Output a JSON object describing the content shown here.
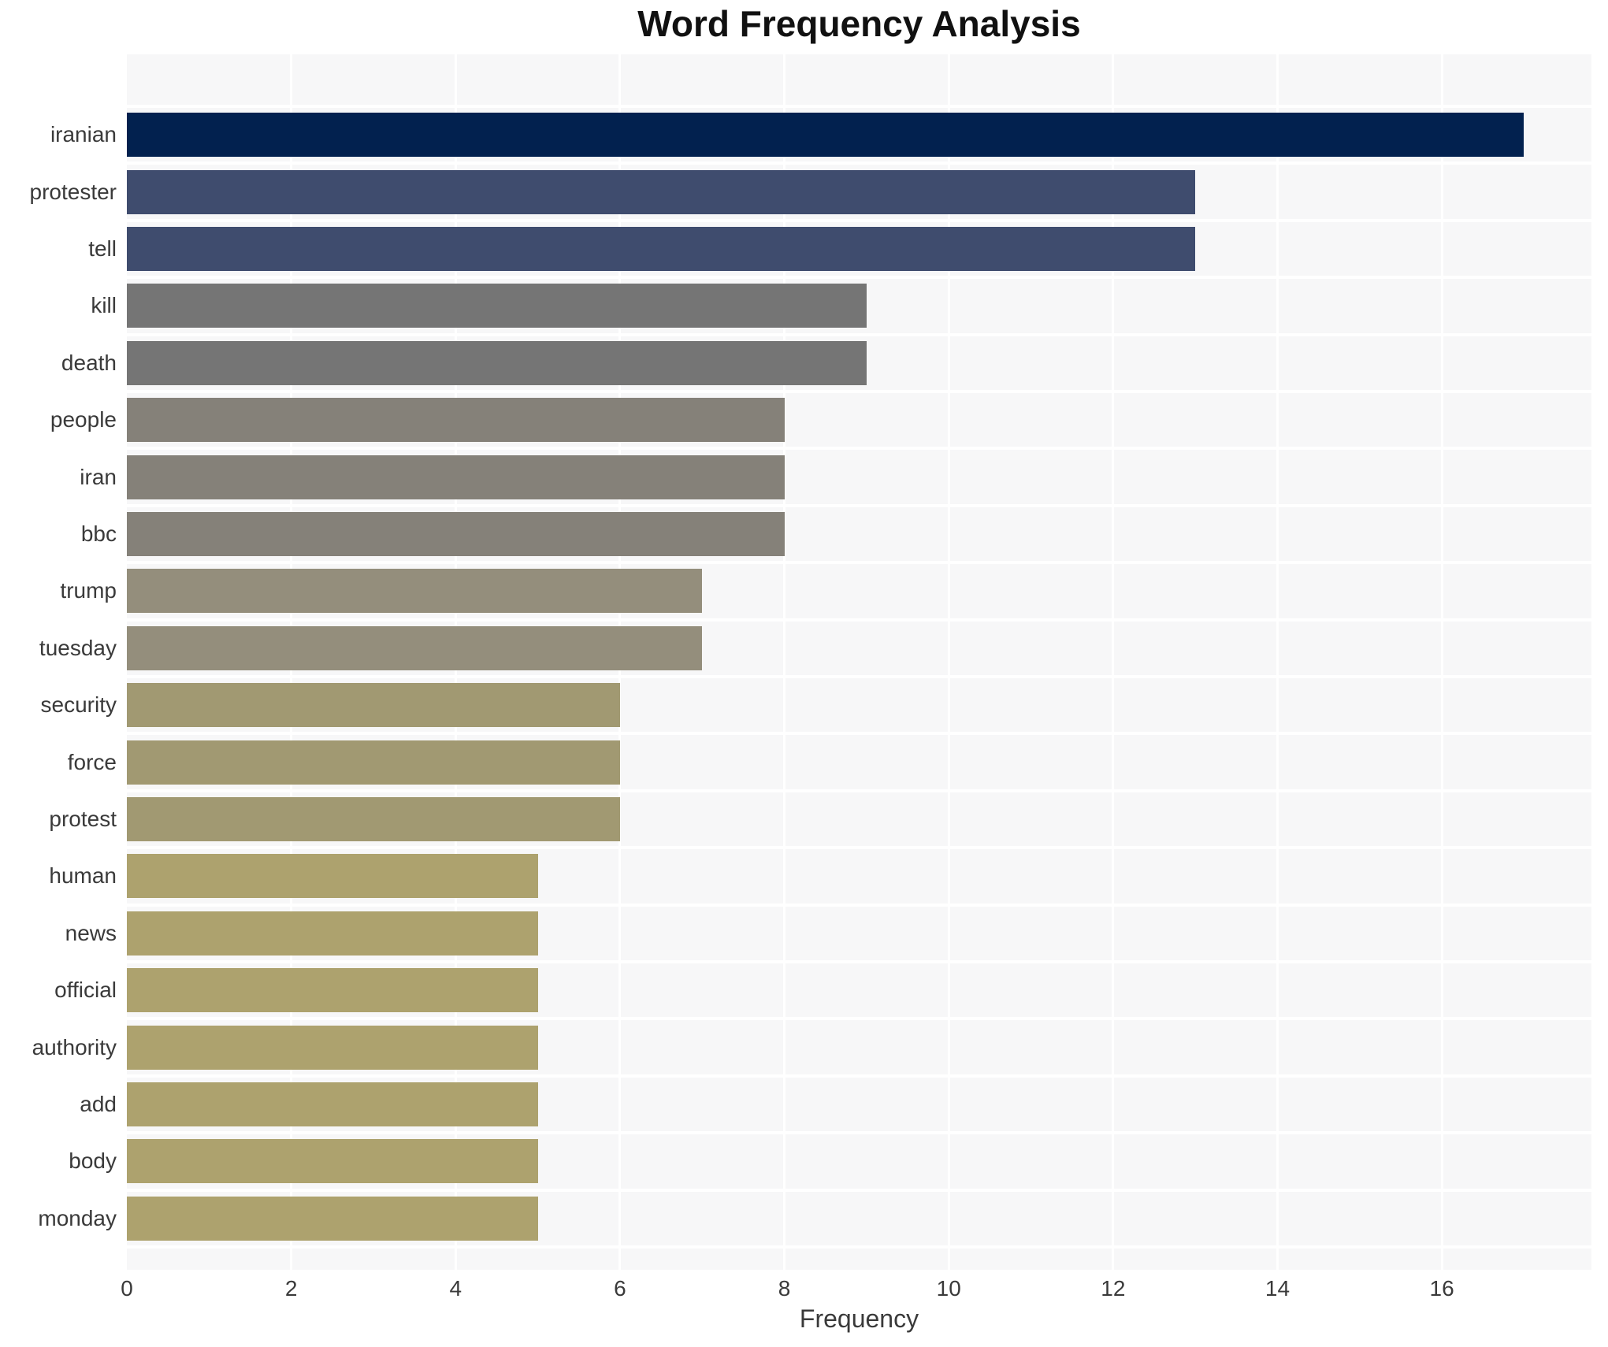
{
  "chart_data": {
    "type": "bar",
    "orientation": "horizontal",
    "title": "Word Frequency Analysis",
    "xlabel": "Frequency",
    "ylabel": "",
    "categories": [
      "iranian",
      "protester",
      "tell",
      "kill",
      "death",
      "people",
      "iran",
      "bbc",
      "trump",
      "tuesday",
      "security",
      "force",
      "protest",
      "human",
      "news",
      "official",
      "authority",
      "add",
      "body",
      "monday"
    ],
    "values": [
      17,
      13,
      13,
      9,
      9,
      8,
      8,
      8,
      7,
      7,
      6,
      6,
      6,
      5,
      5,
      5,
      5,
      5,
      5,
      5
    ],
    "bar_colors": [
      "#02214f",
      "#3f4c6e",
      "#3f4c6e",
      "#757575",
      "#757575",
      "#858179",
      "#858179",
      "#858179",
      "#948e7c",
      "#948e7c",
      "#a19972",
      "#a19972",
      "#a19972",
      "#ada26e",
      "#ada26e",
      "#ada26e",
      "#ada26e",
      "#ada26e",
      "#ada26e",
      "#ada26e"
    ],
    "xticks": [
      0,
      2,
      4,
      6,
      8,
      10,
      12,
      14,
      16
    ],
    "xlim": [
      0,
      17.82
    ],
    "grid": true,
    "legend": "none",
    "plot_background": "#f7f7f8",
    "grid_color": "#ffffff",
    "colormap": "cividis"
  }
}
